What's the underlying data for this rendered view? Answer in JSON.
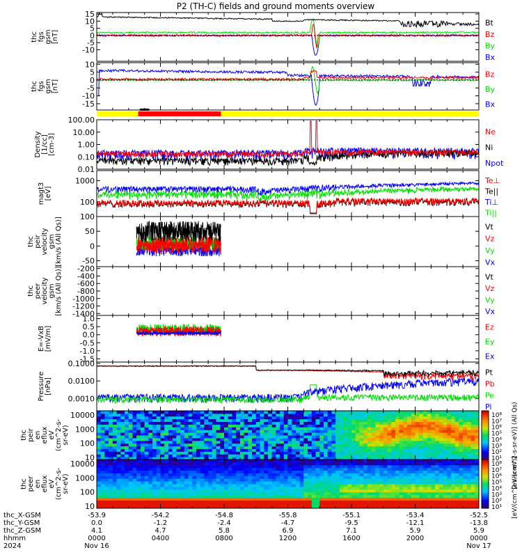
{
  "title": "P2 (TH-C) fields and ground moments overview",
  "colors": {
    "black": "#000000",
    "red": "#ff0000",
    "green": "#00dd00",
    "blue": "#0000ff",
    "yellow": "#ffff00"
  },
  "time_axis": {
    "tick_times": [
      "0000",
      "0400",
      "0800",
      "1200",
      "1600",
      "2000",
      "0000"
    ],
    "rows": [
      {
        "label": "thc_X-GSM",
        "values": [
          "-53.9",
          "-54.2",
          "-54.8",
          "-55.8",
          "-55.1",
          "-53.4",
          "-52.5"
        ]
      },
      {
        "label": "thc_Y-GSM",
        "values": [
          "0.0",
          "-1.2",
          "-2.4",
          "-4.7",
          "-9.5",
          "-12.1",
          "-13.8"
        ]
      },
      {
        "label": "thc_Z-GSM",
        "values": [
          "4.1",
          "4.7",
          "5.8",
          "6.9",
          "7.1",
          "5.9",
          "5.9"
        ]
      },
      {
        "label": "hhmm",
        "values": [
          "0000",
          "0400",
          "0800",
          "1200",
          "1600",
          "2000",
          "0000"
        ]
      },
      {
        "label": "2024",
        "values": [
          "Nov 16",
          "",
          "",
          "",
          "",
          "",
          "Nov 17"
        ]
      }
    ]
  },
  "chart_data": [
    {
      "type": "line",
      "ylabel": [
        "thc",
        "fgs",
        "gsm",
        "[nT]"
      ],
      "ylim": [
        -18,
        16
      ],
      "yticks": [
        "15",
        "10",
        "5",
        "0",
        "-5",
        "-10"
      ],
      "series": [
        {
          "name": "Bt",
          "color": "#000000"
        },
        {
          "name": "Bz",
          "color": "#ff0000"
        },
        {
          "name": "By",
          "color": "#00dd00"
        },
        {
          "name": "Bx",
          "color": "#0000ff"
        }
      ]
    },
    {
      "type": "line",
      "ylabel": [
        "thc",
        "fgs",
        "gsm",
        "[nT]"
      ],
      "ylim": [
        -19,
        11
      ],
      "yticks": [
        "10",
        "5",
        "0",
        "-5",
        "-10",
        "-15"
      ],
      "series": [
        {
          "name": "Bz",
          "color": "#ff0000"
        },
        {
          "name": "By",
          "color": "#00dd00"
        },
        {
          "name": "Bx",
          "color": "#0000ff"
        }
      ]
    },
    {
      "type": "line",
      "ylabel": [
        "Density",
        "[1/cc]",
        "[cm-3]"
      ],
      "scale": "log",
      "ylim": [
        0.01,
        100
      ],
      "yticks": [
        "100.00",
        "10.00",
        "1.00",
        "0.10",
        "0.01"
      ],
      "series": [
        {
          "name": "Ne",
          "color": "#ff0000"
        },
        {
          "name": "Ni",
          "color": "#000000"
        },
        {
          "name": "Npot",
          "color": "#0000ff"
        }
      ]
    },
    {
      "type": "line",
      "ylabel": [
        "magt3",
        "[eV]"
      ],
      "scale": "log",
      "ylim": [
        20,
        3000
      ],
      "yticks": [
        "1000",
        "100"
      ],
      "series": [
        {
          "name": "Te⊥",
          "color": "#ff0000"
        },
        {
          "name": "Te||",
          "color": "#000000"
        },
        {
          "name": "Ti⊥",
          "color": "#0000ff"
        },
        {
          "name": "Ti||",
          "color": "#00dd00"
        }
      ]
    },
    {
      "type": "line",
      "ylabel": [
        "thc",
        "peir",
        "velocity",
        "gsm",
        "[km/s (All Qs)]"
      ],
      "ylim": [
        -70,
        100
      ],
      "yticks": [
        "100",
        "50",
        "0",
        "-50"
      ],
      "series": [
        {
          "name": "Vt",
          "color": "#000000"
        },
        {
          "name": "Vz",
          "color": "#ff0000"
        },
        {
          "name": "Vy",
          "color": "#00dd00"
        },
        {
          "name": "Vx",
          "color": "#0000ff"
        }
      ]
    },
    {
      "type": "line",
      "ylabel": [
        "thc",
        "peer",
        "velocity",
        "gsm",
        "[km/s (All Qs)]"
      ],
      "ylim": [
        -1450,
        -150
      ],
      "yticks": [
        "-200",
        "-400",
        "-600",
        "-800",
        "-1000",
        "-1200",
        "-1400"
      ],
      "series": [
        {
          "name": "Vt",
          "color": "#000000"
        },
        {
          "name": "Vz",
          "color": "#ff0000"
        },
        {
          "name": "Vy",
          "color": "#00dd00"
        },
        {
          "name": "Vx",
          "color": "#0000ff"
        }
      ]
    },
    {
      "type": "line",
      "ylabel": [
        "E=-VxB",
        "[mV/m]"
      ],
      "ylim": [
        -1.7,
        1.2
      ],
      "yticks": [
        "1.0",
        "0.5",
        "0.0",
        "-0.5",
        "-1.0",
        "-1.5"
      ],
      "series": [
        {
          "name": "Ez",
          "color": "#ff0000"
        },
        {
          "name": "Ey",
          "color": "#00dd00"
        },
        {
          "name": "Ex",
          "color": "#0000ff"
        }
      ]
    },
    {
      "type": "line",
      "ylabel": [
        "Pressure",
        "[nPa]"
      ],
      "scale": "log",
      "ylim": [
        0.0002,
        0.12
      ],
      "yticks": [
        "0.1000",
        "0.0100",
        "0.0010"
      ],
      "series": [
        {
          "name": "Pt",
          "color": "#000000"
        },
        {
          "name": "Pb",
          "color": "#ff0000"
        },
        {
          "name": "Pe",
          "color": "#00dd00"
        },
        {
          "name": "Pi",
          "color": "#0000ff"
        }
      ]
    },
    {
      "type": "heatmap",
      "ylabel": [
        "thc",
        "peir",
        "en",
        "eflux",
        "eV",
        "(cm^2-s-",
        "sr-eV)"
      ],
      "scale": "log",
      "ylim": [
        7,
        20000
      ],
      "yticks": [
        "10000",
        "1000",
        "100",
        "10"
      ]
    },
    {
      "type": "heatmap",
      "ylabel": [
        "thc",
        "peer",
        "en",
        "eflux",
        "eV",
        "(cm^2-s-",
        "sr-eV)"
      ],
      "scale": "log",
      "ylim": [
        7,
        20000
      ],
      "yticks": [
        "10000",
        "1000",
        "100",
        "10"
      ]
    }
  ],
  "colorbars": [
    {
      "labels": [
        "10⁸",
        "10⁷",
        "10⁶",
        "10⁵",
        "10⁴",
        "10³",
        "10²",
        "10¹"
      ]
    },
    {
      "labels": [
        "10⁸",
        "10⁷",
        "10⁶",
        "10⁵",
        "10⁴",
        "10³",
        "10²",
        "10¹"
      ]
    }
  ],
  "colorbar_title": "[eV/(cm^2-s-sr-eV)] (All Qs)",
  "colorbar_title2": "[eV/(cm^2-s-sr-eV)]"
}
